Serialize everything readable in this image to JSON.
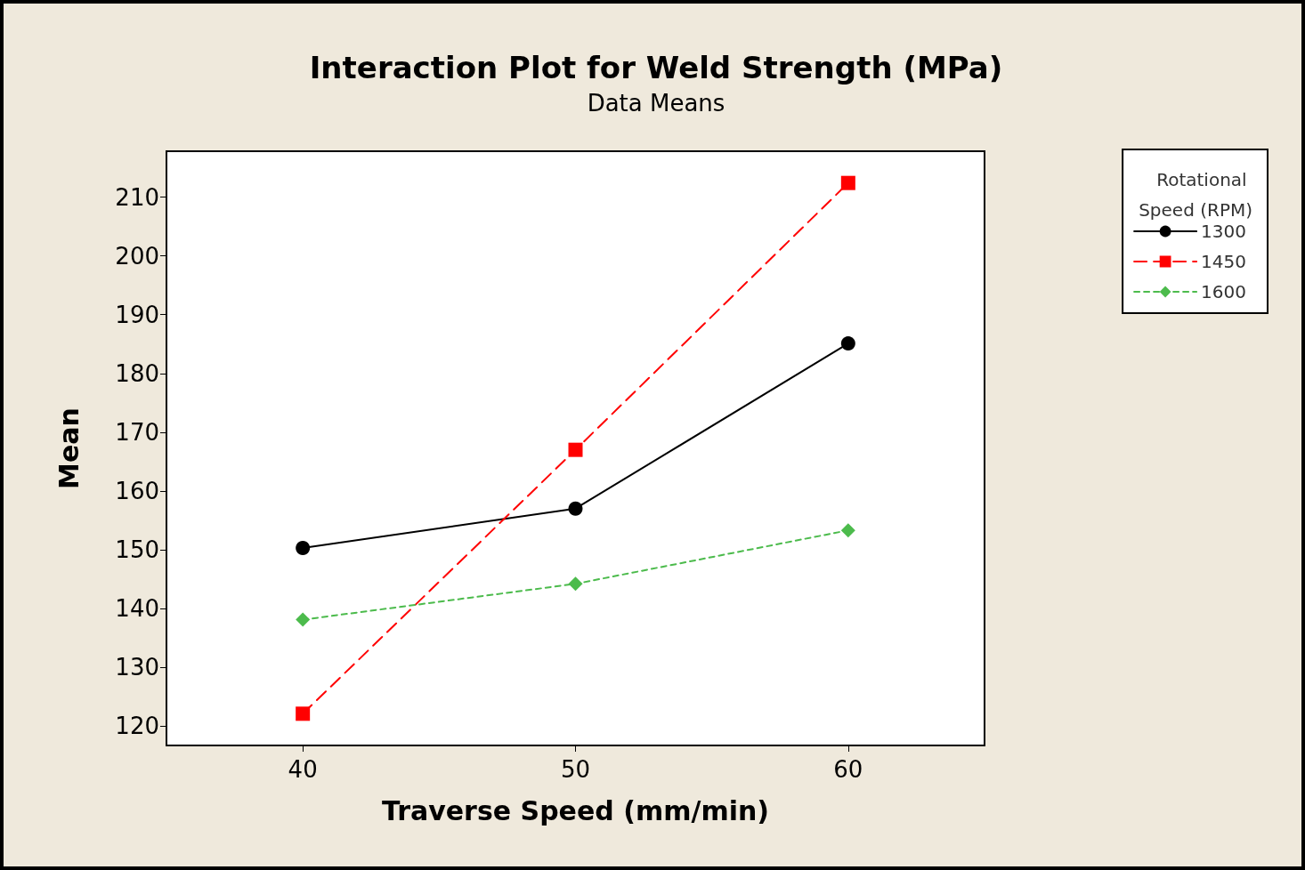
{
  "chart_data": {
    "type": "line",
    "title": "Interaction Plot for Weld Strength (MPa)",
    "subtitle": "Data Means",
    "xlabel": "Traverse Speed (mm/min)",
    "ylabel": "Mean",
    "legend_title": "Rotational Speed (RPM)",
    "x": [
      40,
      50,
      60
    ],
    "series": [
      {
        "name": "1300",
        "color": "#000000",
        "marker": "circle",
        "line_style": "solid",
        "values": [
          150.3,
          157,
          185.1
        ]
      },
      {
        "name": "1450",
        "color": "#ff0000",
        "marker": "square",
        "line_style": "dashed",
        "values": [
          122.1,
          167,
          212.4
        ]
      },
      {
        "name": "1600",
        "color": "#4cbb4c",
        "marker": "diamond",
        "line_style": "dotted",
        "values": [
          138.1,
          144.2,
          153.3
        ]
      }
    ],
    "xlim": [
      35,
      65
    ],
    "xticks": [
      40,
      50,
      60
    ],
    "ylim": [
      116.7,
      217.8
    ],
    "yticks": [
      120,
      130,
      140,
      150,
      160,
      170,
      180,
      190,
      200,
      210
    ],
    "grid": false,
    "legend": "right"
  }
}
